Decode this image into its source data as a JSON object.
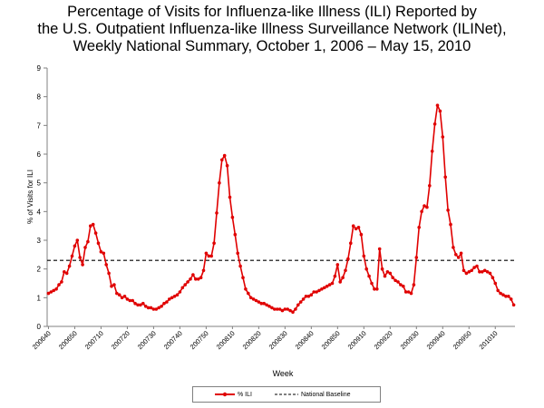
{
  "chart_data": {
    "type": "line",
    "title": "Percentage of Visits for Influenza-like Illness (ILI) Reported by the U.S. Outpatient Influenza-like Illness Surveillance Network (ILINet), Weekly National Summary, October 1, 2006 – May 15, 2010",
    "title_lines": [
      "Percentage of Visits for Influenza-like Illness (ILI) Reported by",
      "the U.S. Outpatient Influenza-like Illness Surveillance Network (ILINet),",
      "Weekly National Summary, October 1, 2006 – May 15, 2010"
    ],
    "xlabel": "Week",
    "ylabel": "% of Visits for ILI",
    "ylim": [
      0,
      9
    ],
    "yticks": [
      0,
      1,
      2,
      3,
      4,
      5,
      6,
      7,
      8,
      9
    ],
    "xtick_labels": [
      "200640",
      "200650",
      "200710",
      "200720",
      "200730",
      "200740",
      "200750",
      "200810",
      "200820",
      "200830",
      "200840",
      "200850",
      "200910",
      "200920",
      "200930",
      "200940",
      "200950",
      "201010"
    ],
    "grid": false,
    "legend_position": "bottom",
    "series": [
      {
        "name": "% ILI",
        "color": "#e00000",
        "values": [
          1.15,
          1.2,
          1.25,
          1.3,
          1.45,
          1.55,
          1.9,
          1.85,
          2.1,
          2.45,
          2.8,
          3.0,
          2.4,
          2.15,
          2.75,
          2.95,
          3.5,
          3.55,
          3.25,
          2.9,
          2.6,
          2.55,
          2.15,
          1.85,
          1.4,
          1.45,
          1.15,
          1.1,
          1.0,
          1.05,
          0.95,
          0.9,
          0.9,
          0.8,
          0.75,
          0.75,
          0.8,
          0.7,
          0.65,
          0.65,
          0.6,
          0.6,
          0.65,
          0.7,
          0.8,
          0.85,
          0.95,
          1.0,
          1.05,
          1.1,
          1.2,
          1.35,
          1.45,
          1.55,
          1.65,
          1.8,
          1.65,
          1.65,
          1.7,
          1.95,
          2.55,
          2.45,
          2.45,
          2.9,
          3.95,
          5.0,
          5.8,
          5.95,
          5.6,
          4.5,
          3.8,
          3.2,
          2.55,
          2.1,
          1.7,
          1.3,
          1.15,
          1.0,
          0.95,
          0.9,
          0.85,
          0.8,
          0.8,
          0.75,
          0.7,
          0.65,
          0.6,
          0.6,
          0.6,
          0.55,
          0.6,
          0.6,
          0.55,
          0.5,
          0.6,
          0.75,
          0.85,
          0.95,
          1.05,
          1.05,
          1.1,
          1.2,
          1.2,
          1.25,
          1.3,
          1.35,
          1.4,
          1.45,
          1.5,
          1.75,
          2.15,
          1.55,
          1.7,
          1.95,
          2.35,
          2.9,
          3.5,
          3.4,
          3.45,
          3.2,
          2.45,
          2.0,
          1.75,
          1.5,
          1.3,
          1.3,
          2.7,
          2.0,
          1.75,
          1.9,
          1.85,
          1.7,
          1.6,
          1.55,
          1.45,
          1.4,
          1.2,
          1.2,
          1.15,
          1.45,
          2.4,
          3.45,
          4.0,
          4.2,
          4.15,
          4.9,
          6.1,
          7.05,
          7.7,
          7.5,
          6.6,
          5.2,
          4.05,
          3.55,
          2.75,
          2.5,
          2.4,
          2.55,
          1.95,
          1.85,
          1.9,
          1.95,
          2.05,
          2.1,
          1.9,
          1.9,
          1.95,
          1.9,
          1.85,
          1.7,
          1.5,
          1.25,
          1.15,
          1.1,
          1.05,
          1.05,
          0.95,
          0.75
        ]
      },
      {
        "name": "National Baseline",
        "color": "#000000",
        "values": [
          2.3
        ]
      }
    ]
  }
}
